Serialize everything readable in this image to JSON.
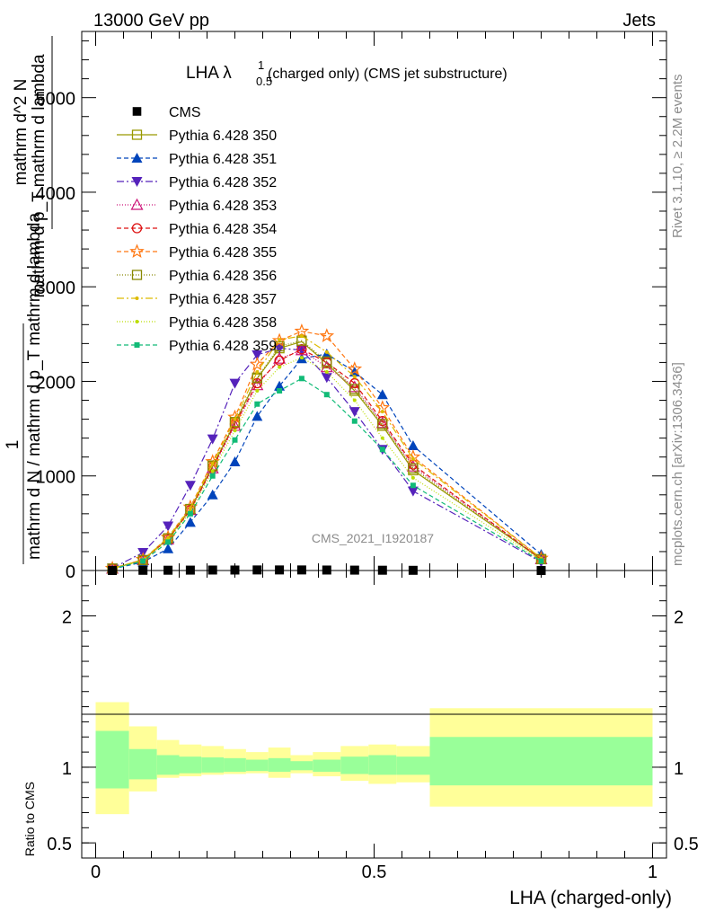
{
  "header": {
    "left": "13000 GeV pp",
    "right": "Jets"
  },
  "side_labels": {
    "rivet": "Rivet 3.1.10, ≥ 2.2M events",
    "mcplots": "mcplots.cern.ch [arXiv:1306.3436]"
  },
  "watermark": "CMS_2021_I1920187",
  "plot_title": {
    "main": "LHA λ",
    "sup": "1",
    "sub": "0.5",
    "rest": " (charged only) (CMS jet substructure)"
  },
  "colors": {
    "band_inner": "#99ff99",
    "band_outer": "#ffff99",
    "data": "#000000"
  },
  "chart_data": [
    {
      "type": "line",
      "xlabel": "LHA (charged-only)",
      "ylabel_top": "1",
      "ylabel_bottom": "mathrm d N / mathrm d p_T mathrm d lambda",
      "ylabel_num": "mathrm d^2 N",
      "ylabel_den": "mathrm d p_T mathrm d lambda",
      "xlim": [
        -0.025,
        1.025
      ],
      "ylim": [
        0,
        5700
      ],
      "yticks": [
        0,
        1000,
        2000,
        3000,
        4000,
        5000
      ],
      "ytick_labels": [
        "0",
        "1000",
        "2000",
        "3000",
        "4000",
        "5000"
      ],
      "legend_position": "top-left",
      "data_series": {
        "name": "CMS",
        "x": [
          0.03,
          0.085,
          0.13,
          0.17,
          0.21,
          0.25,
          0.29,
          0.33,
          0.37,
          0.415,
          0.465,
          0.515,
          0.57,
          0.8
        ],
        "y": [
          0,
          2,
          3,
          4,
          5,
          5,
          6,
          6,
          6,
          5,
          4,
          3,
          2,
          0
        ]
      },
      "series": [
        {
          "name": "Pythia 6.428 350",
          "color": "#999900",
          "marker": "open-square",
          "dash": "",
          "x": [
            0.03,
            0.085,
            0.13,
            0.17,
            0.21,
            0.25,
            0.29,
            0.33,
            0.37,
            0.415,
            0.465,
            0.515,
            0.57,
            0.8
          ],
          "y": [
            20,
            110,
            340,
            650,
            1100,
            1560,
            2030,
            2350,
            2420,
            2190,
            1900,
            1530,
            1060,
            120
          ]
        },
        {
          "name": "Pythia 6.428 351",
          "color": "#0044bb",
          "marker": "filled-triangle",
          "dash": "5,3",
          "x": [
            0.03,
            0.085,
            0.13,
            0.17,
            0.21,
            0.25,
            0.29,
            0.33,
            0.37,
            0.415,
            0.465,
            0.515,
            0.57,
            0.8
          ],
          "y": [
            15,
            90,
            230,
            510,
            800,
            1150,
            1630,
            1950,
            2240,
            2290,
            2100,
            1860,
            1320,
            170
          ]
        },
        {
          "name": "Pythia 6.428 352",
          "color": "#5522bb",
          "marker": "filled-triangle-down",
          "dash": "8,3,2,3",
          "x": [
            0.03,
            0.085,
            0.13,
            0.17,
            0.21,
            0.25,
            0.29,
            0.33,
            0.37,
            0.415,
            0.465,
            0.515,
            0.57,
            0.8
          ],
          "y": [
            25,
            190,
            470,
            900,
            1390,
            1980,
            2280,
            2350,
            2330,
            2040,
            1680,
            1280,
            840,
            90
          ]
        },
        {
          "name": "Pythia 6.428 353",
          "color": "#cc1177",
          "marker": "open-triangle",
          "dash": "1,2",
          "x": [
            0.03,
            0.085,
            0.13,
            0.17,
            0.21,
            0.25,
            0.29,
            0.33,
            0.37,
            0.415,
            0.465,
            0.515,
            0.57,
            0.8
          ],
          "y": [
            20,
            110,
            330,
            640,
            1080,
            1530,
            1960,
            2240,
            2330,
            2150,
            1940,
            1560,
            1100,
            120
          ]
        },
        {
          "name": "Pythia 6.428 354",
          "color": "#dd1111",
          "marker": "open-circle",
          "dash": "5,3",
          "x": [
            0.03,
            0.085,
            0.13,
            0.17,
            0.21,
            0.25,
            0.29,
            0.33,
            0.37,
            0.415,
            0.465,
            0.515,
            0.57,
            0.8
          ],
          "y": [
            20,
            110,
            330,
            640,
            1090,
            1550,
            1980,
            2220,
            2340,
            2200,
            1980,
            1580,
            1120,
            120
          ]
        },
        {
          "name": "Pythia 6.428 355",
          "color": "#ff7711",
          "marker": "open-star",
          "dash": "5,3",
          "x": [
            0.03,
            0.085,
            0.13,
            0.17,
            0.21,
            0.25,
            0.29,
            0.33,
            0.37,
            0.415,
            0.465,
            0.515,
            0.57,
            0.8
          ],
          "y": [
            22,
            115,
            350,
            670,
            1150,
            1620,
            2180,
            2430,
            2530,
            2480,
            2130,
            1720,
            1200,
            130
          ]
        },
        {
          "name": "Pythia 6.428 356",
          "color": "#888800",
          "marker": "open-square",
          "dash": "1,2",
          "x": [
            0.03,
            0.085,
            0.13,
            0.17,
            0.21,
            0.25,
            0.29,
            0.33,
            0.37,
            0.415,
            0.465,
            0.515,
            0.57,
            0.8
          ],
          "y": [
            20,
            110,
            340,
            650,
            1110,
            1570,
            2040,
            2370,
            2430,
            2210,
            1920,
            1550,
            1080,
            120
          ]
        },
        {
          "name": "Pythia 6.428 357",
          "color": "#ddbb00",
          "marker": "small-dot",
          "dash": "8,3,2,3",
          "x": [
            0.03,
            0.085,
            0.13,
            0.17,
            0.21,
            0.25,
            0.29,
            0.33,
            0.37,
            0.415,
            0.465,
            0.515,
            0.57,
            0.8
          ],
          "y": [
            22,
            115,
            345,
            660,
            1130,
            1600,
            2100,
            2440,
            2480,
            2310,
            2050,
            1680,
            1180,
            130
          ]
        },
        {
          "name": "Pythia 6.428 358",
          "color": "#bbdd00",
          "marker": "small-dot",
          "dash": "1,2",
          "x": [
            0.03,
            0.085,
            0.13,
            0.17,
            0.21,
            0.25,
            0.29,
            0.33,
            0.37,
            0.415,
            0.465,
            0.515,
            0.57,
            0.8
          ],
          "y": [
            18,
            105,
            320,
            620,
            1050,
            1480,
            1900,
            2150,
            2250,
            2100,
            1800,
            1400,
            980,
            110
          ]
        },
        {
          "name": "Pythia 6.428 359",
          "color": "#11bb77",
          "marker": "filled-square-small",
          "dash": "5,3",
          "x": [
            0.03,
            0.085,
            0.13,
            0.17,
            0.21,
            0.25,
            0.29,
            0.33,
            0.37,
            0.415,
            0.465,
            0.515,
            0.57,
            0.8
          ],
          "y": [
            18,
            100,
            300,
            600,
            1000,
            1380,
            1760,
            1900,
            2030,
            1860,
            1580,
            1280,
            900,
            100
          ]
        }
      ]
    },
    {
      "type": "area",
      "ylabel": "Ratio to CMS",
      "xlim": [
        -0.025,
        1.025
      ],
      "ylim": [
        0.4,
        2.3
      ],
      "yticks": [
        0.5,
        1,
        2
      ],
      "ytick_labels": [
        "0.5",
        "1",
        "2"
      ],
      "xticks": [
        0,
        0.5,
        1
      ],
      "xtick_labels": [
        "0",
        "0.5",
        "1"
      ],
      "bands": [
        {
          "x0": 0.0,
          "x1": 0.06,
          "outer": [
            0.69,
            1.43
          ],
          "inner": [
            0.86,
            1.24
          ]
        },
        {
          "x0": 0.06,
          "x1": 0.11,
          "outer": [
            0.84,
            1.27
          ],
          "inner": [
            0.92,
            1.12
          ]
        },
        {
          "x0": 0.11,
          "x1": 0.15,
          "outer": [
            0.93,
            1.18
          ],
          "inner": [
            0.95,
            1.08
          ]
        },
        {
          "x0": 0.15,
          "x1": 0.19,
          "outer": [
            0.94,
            1.15
          ],
          "inner": [
            0.96,
            1.07
          ]
        },
        {
          "x0": 0.19,
          "x1": 0.23,
          "outer": [
            0.95,
            1.14
          ],
          "inner": [
            0.965,
            1.065
          ]
        },
        {
          "x0": 0.23,
          "x1": 0.27,
          "outer": [
            0.955,
            1.12
          ],
          "inner": [
            0.97,
            1.06
          ]
        },
        {
          "x0": 0.27,
          "x1": 0.31,
          "outer": [
            0.96,
            1.1
          ],
          "inner": [
            0.975,
            1.05
          ]
        },
        {
          "x0": 0.31,
          "x1": 0.35,
          "outer": [
            0.93,
            1.13
          ],
          "inner": [
            0.97,
            1.06
          ]
        },
        {
          "x0": 0.35,
          "x1": 0.39,
          "outer": [
            0.96,
            1.08
          ],
          "inner": [
            0.98,
            1.04
          ]
        },
        {
          "x0": 0.39,
          "x1": 0.44,
          "outer": [
            0.94,
            1.1
          ],
          "inner": [
            0.97,
            1.05
          ]
        },
        {
          "x0": 0.44,
          "x1": 0.49,
          "outer": [
            0.91,
            1.14
          ],
          "inner": [
            0.955,
            1.07
          ]
        },
        {
          "x0": 0.49,
          "x1": 0.54,
          "outer": [
            0.89,
            1.15
          ],
          "inner": [
            0.95,
            1.08
          ]
        },
        {
          "x0": 0.54,
          "x1": 0.6,
          "outer": [
            0.9,
            1.14
          ],
          "inner": [
            0.95,
            1.07
          ]
        },
        {
          "x0": 0.6,
          "x1": 1.0,
          "outer": [
            0.74,
            1.39
          ],
          "inner": [
            0.88,
            1.2
          ]
        }
      ]
    }
  ]
}
